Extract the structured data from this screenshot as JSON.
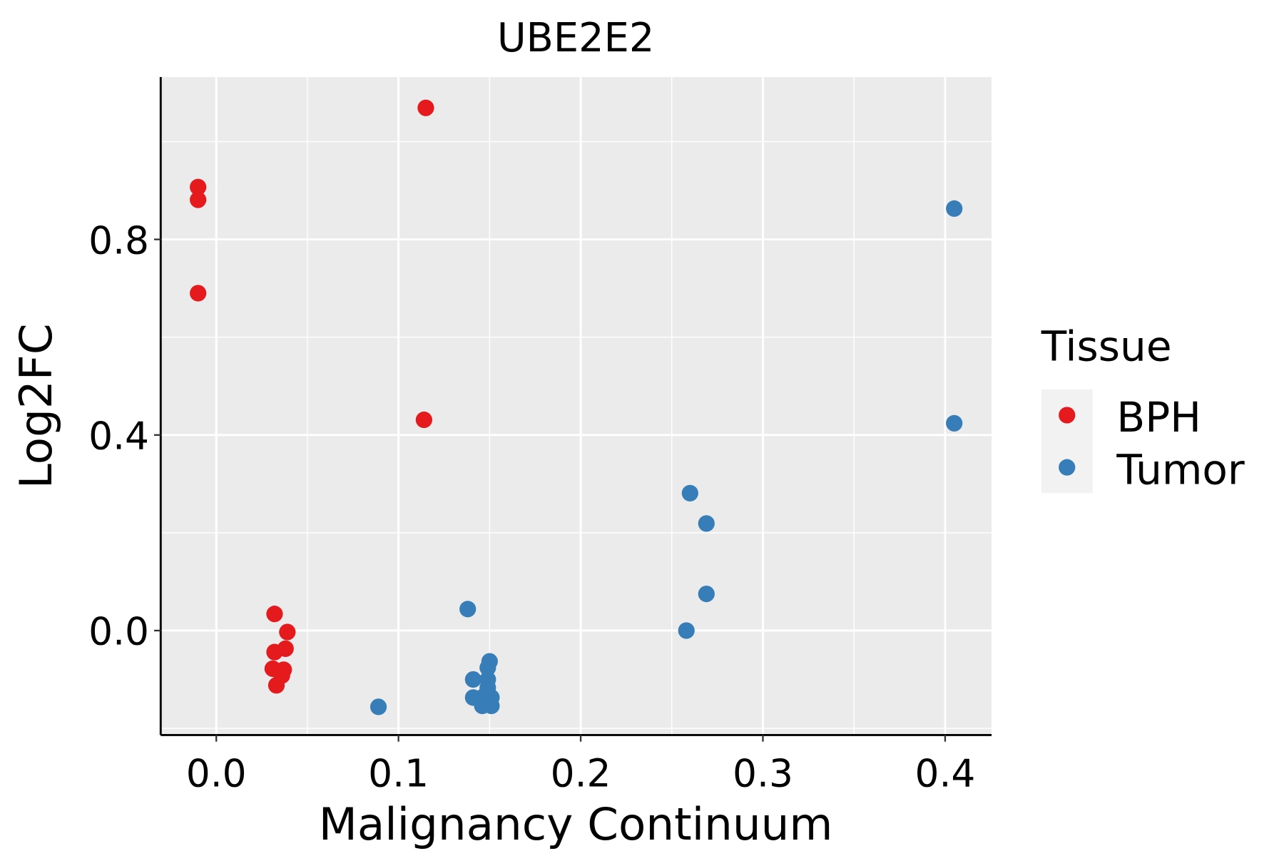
{
  "chart_data": {
    "type": "scatter",
    "title": "UBE2E2",
    "xlabel": "Malignancy Continuum",
    "ylabel": "Log2FC",
    "xlim": [
      -0.0305,
      0.4255
    ],
    "ylim": [
      -0.2136,
      1.132
    ],
    "xticks": [
      0.0,
      0.1,
      0.2,
      0.3,
      0.4
    ],
    "xtick_labels": [
      "0.0",
      "0.1",
      "0.2",
      "0.3",
      "0.4"
    ],
    "yticks": [
      0.0,
      0.4,
      0.8
    ],
    "ytick_labels": [
      "0.0",
      "0.4",
      "0.8"
    ],
    "grid": true,
    "legend": {
      "title": "Tissue",
      "placement": "right"
    },
    "series": [
      {
        "name": "BPH",
        "color": "#E41A1C",
        "points": [
          [
            -0.01,
            0.907
          ],
          [
            -0.01,
            0.881
          ],
          [
            -0.01,
            0.69
          ],
          [
            0.115,
            1.069
          ],
          [
            0.114,
            0.431
          ],
          [
            0.032,
            0.034
          ],
          [
            0.039,
            -0.003
          ],
          [
            0.032,
            -0.044
          ],
          [
            0.038,
            -0.037
          ],
          [
            0.031,
            -0.078
          ],
          [
            0.037,
            -0.08
          ],
          [
            0.036,
            -0.092
          ],
          [
            0.033,
            -0.112
          ]
        ]
      },
      {
        "name": "Tumor",
        "color": "#377EB8",
        "points": [
          [
            0.405,
            0.863
          ],
          [
            0.405,
            0.424
          ],
          [
            0.26,
            0.281
          ],
          [
            0.269,
            0.219
          ],
          [
            0.269,
            0.075
          ],
          [
            0.258,
            0.0
          ],
          [
            0.138,
            0.044
          ],
          [
            0.089,
            -0.156
          ],
          [
            0.15,
            -0.063
          ],
          [
            0.149,
            -0.076
          ],
          [
            0.141,
            -0.1
          ],
          [
            0.149,
            -0.1
          ],
          [
            0.149,
            -0.117
          ],
          [
            0.141,
            -0.137
          ],
          [
            0.151,
            -0.137
          ],
          [
            0.146,
            -0.154
          ],
          [
            0.151,
            -0.154
          ],
          [
            0.147,
            -0.134
          ]
        ]
      }
    ]
  }
}
